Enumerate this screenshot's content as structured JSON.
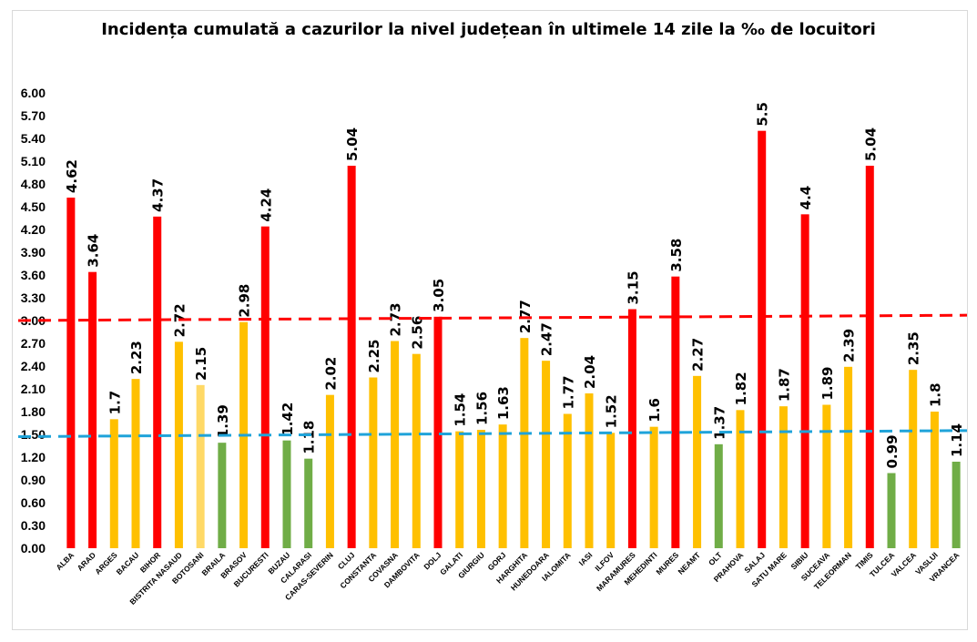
{
  "chart_data": {
    "type": "bar",
    "title": "Incidența cumulată a cazurilor la nivel județean în ultimele 14 zile la ‰ de locuitori",
    "xlabel": "",
    "ylabel": "",
    "ylim": [
      0,
      6
    ],
    "yticks": [
      "0.00",
      "0.30",
      "0.60",
      "0.90",
      "1.20",
      "1.50",
      "1.80",
      "2.10",
      "2.40",
      "2.70",
      "3.00",
      "3.30",
      "3.60",
      "3.90",
      "4.20",
      "4.50",
      "4.80",
      "5.10",
      "5.40",
      "5.70",
      "6.00"
    ],
    "grid": false,
    "legend": "none",
    "colors": {
      "red": "#ff0000",
      "yellow": "#ffc000",
      "lightyellow": "#ffd966",
      "green": "#70ad47",
      "threshold_high": "#ff0000",
      "threshold_low": "#1fa3d9"
    },
    "categories": [
      "ALBA",
      "ARAD",
      "ARGES",
      "BACAU",
      "BIHOR",
      "BISTRITA NASAUD",
      "BOTOSANI",
      "BRAILA",
      "BRASOV",
      "BUCURESTI",
      "BUZAU",
      "CALARASI",
      "CARAS-SEVERIN",
      "CLUJ",
      "CONSTANTA",
      "COVASNA",
      "DAMBOVITA",
      "DOLJ",
      "GALATI",
      "GIURGIU",
      "GORJ",
      "HARGHITA",
      "HUNEDOARA",
      "IALOMITA",
      "IASI",
      "ILFOV",
      "MARAMURES",
      "MEHEDINTI",
      "MURES",
      "NEAMT",
      "OLT",
      "PRAHOVA",
      "SALAJ",
      "SATU MARE",
      "SIBIU",
      "SUCEAVA",
      "TELEORMAN",
      "TIMIS",
      "TULCEA",
      "VALCEA",
      "VASLUI",
      "VRANCEA"
    ],
    "values": [
      4.62,
      3.64,
      1.7,
      2.23,
      4.37,
      2.72,
      2.15,
      1.39,
      2.98,
      4.24,
      1.42,
      1.18,
      2.02,
      5.04,
      2.25,
      2.73,
      2.56,
      3.05,
      1.54,
      1.56,
      1.63,
      2.77,
      2.47,
      1.77,
      2.04,
      1.52,
      3.15,
      1.6,
      3.58,
      2.27,
      1.37,
      1.82,
      5.5,
      1.87,
      4.4,
      1.89,
      2.39,
      5.04,
      0.99,
      2.35,
      1.8,
      1.14
    ],
    "labels": [
      "4.62",
      "3.64",
      "1.7",
      "2.23",
      "4.37",
      "2.72",
      "2.15",
      "1.39",
      "2.98",
      "4.24",
      "1.42",
      "1.18",
      "2.02",
      "5.04",
      "2.25",
      "2.73",
      "2.56",
      "3.05",
      "1.54",
      "1.56",
      "1.63",
      "2.77",
      "2.47",
      "1.77",
      "2.04",
      "1.52",
      "3.15",
      "1.6",
      "3.58",
      "2.27",
      "1.37",
      "1.82",
      "5.5",
      "1.87",
      "4.4",
      "1.89",
      "2.39",
      "5.04",
      "0.99",
      "2.35",
      "1.8",
      "1.14"
    ],
    "bar_colors": [
      "red",
      "red",
      "yellow",
      "yellow",
      "red",
      "yellow",
      "lightyellow",
      "green",
      "yellow",
      "red",
      "green",
      "green",
      "yellow",
      "red",
      "yellow",
      "yellow",
      "yellow",
      "red",
      "yellow",
      "yellow",
      "yellow",
      "yellow",
      "yellow",
      "yellow",
      "yellow",
      "yellow",
      "red",
      "yellow",
      "red",
      "yellow",
      "green",
      "yellow",
      "red",
      "yellow",
      "red",
      "yellow",
      "yellow",
      "red",
      "green",
      "yellow",
      "yellow",
      "green"
    ],
    "threshold_lines": [
      {
        "value_start": 3.0,
        "value_end": 3.07,
        "color": "threshold_high"
      },
      {
        "value_start": 1.47,
        "value_end": 1.55,
        "color": "threshold_low"
      }
    ]
  }
}
